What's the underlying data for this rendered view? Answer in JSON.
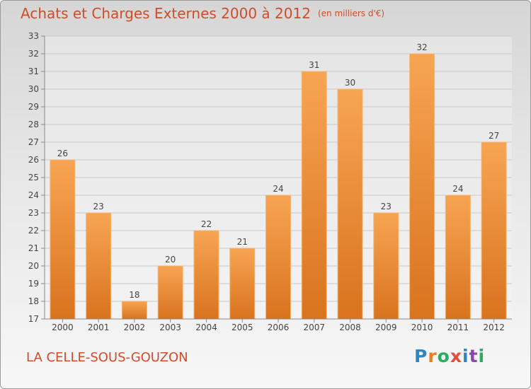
{
  "header": {
    "title": "Achats et Charges Externes 2000 à 2012",
    "subtitle": "(en milliers d'€)"
  },
  "footer": {
    "commune": "LA CELLE-SOUS-GOUZON",
    "logo_letters": [
      "P",
      "r",
      "o",
      "x",
      "i",
      "t",
      "i"
    ],
    "logo_colors": [
      "#2e86c1",
      "#e67e22",
      "#27ae60",
      "#e74c3c",
      "#2e86c1",
      "#8e44ad",
      "#27ae60"
    ]
  },
  "chart_data": {
    "type": "bar",
    "categories": [
      "2000",
      "2001",
      "2002",
      "2003",
      "2004",
      "2005",
      "2006",
      "2007",
      "2008",
      "2009",
      "2010",
      "2011",
      "2012"
    ],
    "values": [
      26,
      23,
      18,
      20,
      22,
      21,
      24,
      31,
      30,
      23,
      32,
      24,
      27
    ],
    "ylim": [
      17,
      33
    ],
    "yticks": [
      17,
      18,
      19,
      20,
      21,
      22,
      23,
      24,
      25,
      26,
      27,
      28,
      29,
      30,
      31,
      32,
      33
    ],
    "grid": true,
    "data_labels": true,
    "bar_color_top": "#f7a553",
    "bar_color_bottom": "#d9731e"
  }
}
